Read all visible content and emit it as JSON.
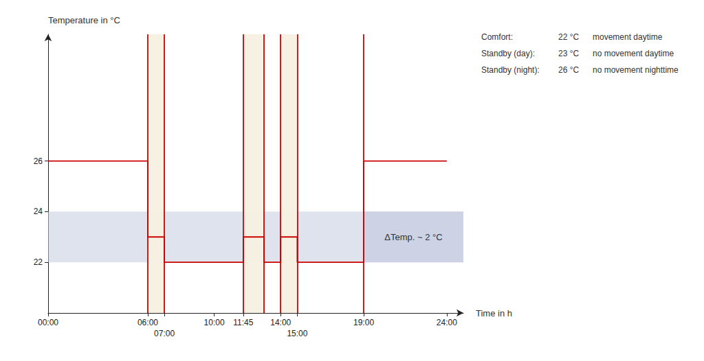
{
  "chart_data": {
    "type": "line",
    "xlabel": "Time in h",
    "ylabel": "Temperature in °C",
    "x": [
      0,
      6,
      6,
      7,
      7,
      11.75,
      11.75,
      13,
      13,
      14,
      14,
      15,
      15,
      19,
      19,
      24
    ],
    "series": [
      {
        "values": [
          26,
          26,
          23,
          23,
          22,
          22,
          23,
          23,
          22,
          22,
          23,
          23,
          22,
          22,
          26,
          26
        ],
        "color": "#cc0000"
      }
    ],
    "xlim": [
      0,
      25.0
    ],
    "ylim": [
      20.0,
      31.0
    ],
    "xticks": [
      {
        "value": 0,
        "label": "00:00"
      },
      {
        "value": 6,
        "label": "06:00"
      },
      {
        "value": 7.0,
        "label": "07:00"
      },
      {
        "value": 10,
        "label": "10:00"
      },
      {
        "value": 11.75,
        "label": "11:45"
      },
      {
        "value": 14,
        "label": "14:00"
      },
      {
        "value": 15.0,
        "label": "15:00"
      },
      {
        "value": 19,
        "label": "19:00"
      },
      {
        "value": 24,
        "label": "24:00"
      }
    ],
    "yticks": [
      22,
      24,
      26
    ],
    "grid": false,
    "comfort_band": [
      22,
      24
    ],
    "comfort_band_color": "#c5cce0",
    "presence_bands": [
      [
        6.0,
        7.0
      ],
      [
        11.75,
        13.0
      ],
      [
        14.0,
        15.0
      ]
    ],
    "presence_band_color": "#f5f0e0",
    "spike_times": [
      6,
      7,
      11.75,
      13,
      14,
      15,
      19
    ],
    "annotation": "ΔTemp. ~ 2 °C",
    "legend_table": [
      [
        "Comfort:",
        "22 °C",
        "movement daytime"
      ],
      [
        "Standby (day):",
        "23 °C",
        "no movement daytime"
      ],
      [
        "Standby (night):",
        "26 °C",
        "no movement nighttime"
      ]
    ]
  }
}
